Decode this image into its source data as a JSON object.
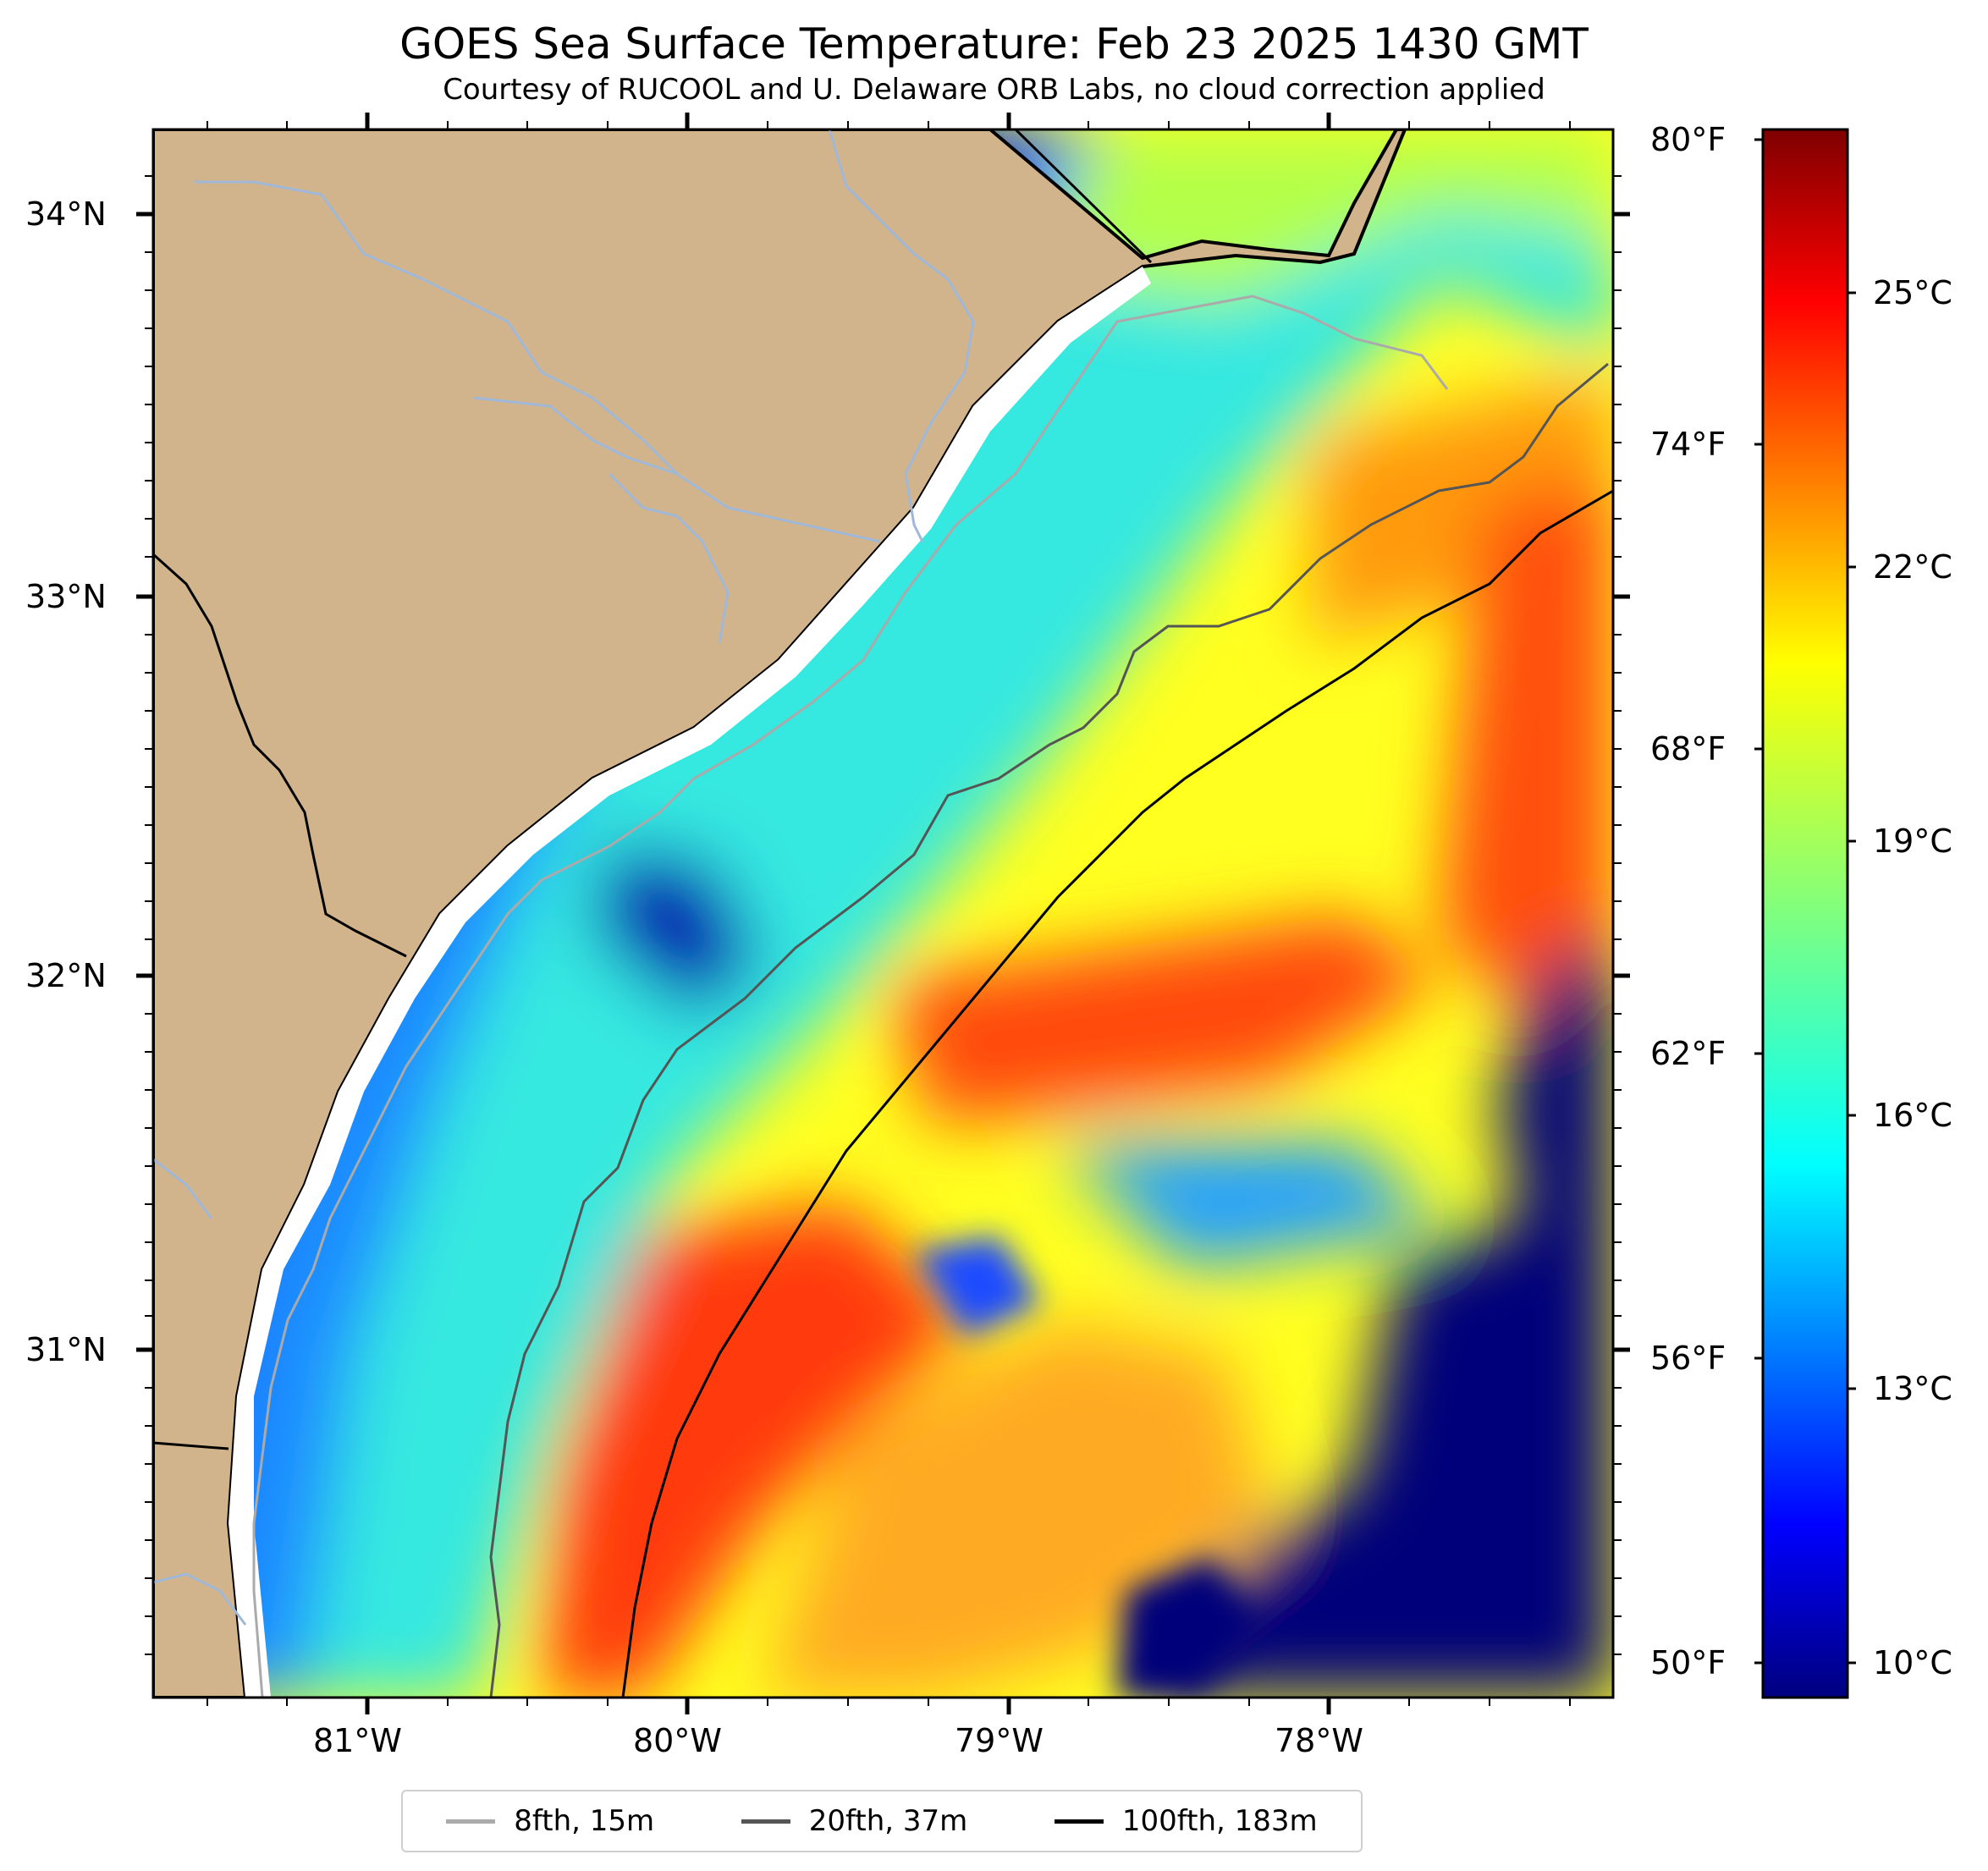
{
  "title": "GOES Sea Surface Temperature: Feb 23 2025 1430 GMT",
  "subtitle": "Courtesy of RUCOOL and U. Delaware ORB Labs, no cloud correction applied",
  "colors": {
    "land": "#d2b48c",
    "coast": "#000000",
    "rivers": "#a0b8d8",
    "bathy_8fth": "#aaaaaa",
    "bathy_20fth": "#555555",
    "bathy_100fth": "#000000"
  },
  "colormap": "jet",
  "lat_labels": [
    "34°N",
    "33°N",
    "32°N",
    "31°N"
  ],
  "lon_labels": [
    "81°W",
    "80°W",
    "79°W",
    "78°W"
  ],
  "colorbar": {
    "fahrenheit_labels": [
      "80°F",
      "74°F",
      "68°F",
      "62°F",
      "56°F",
      "50°F"
    ],
    "celsius_labels": [
      "25°C",
      "22°C",
      "19°C",
      "16°C",
      "13°C",
      "10°C"
    ],
    "range_c": [
      9.5,
      26.8
    ]
  },
  "legend": [
    {
      "label": "8fth, 15m",
      "color": "#aaaaaa"
    },
    {
      "label": "20fth, 37m",
      "color": "#555555"
    },
    {
      "label": "100fth, 183m",
      "color": "#000000"
    }
  ]
}
